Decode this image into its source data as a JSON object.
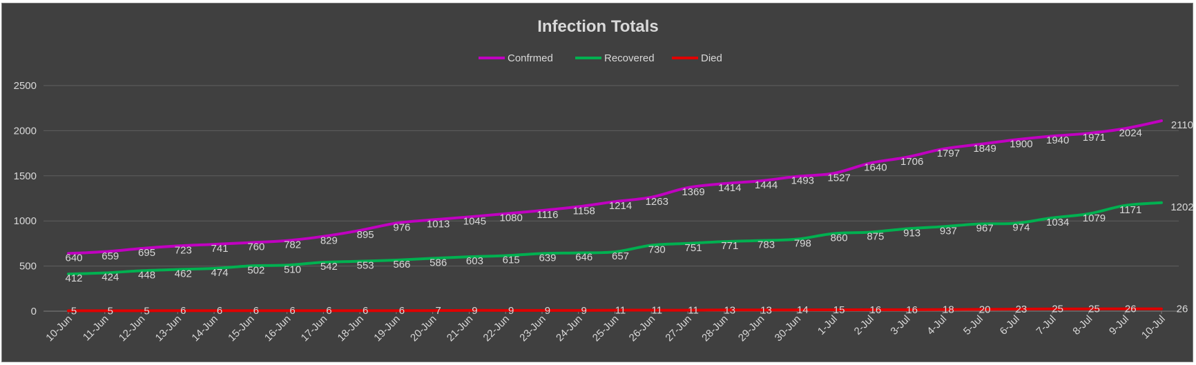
{
  "chart_data": {
    "type": "line",
    "title": "Infection Totals",
    "xlabel": "",
    "ylabel": "",
    "ylim": [
      0,
      2500
    ],
    "yticks": [
      0,
      500,
      1000,
      1500,
      2000,
      2500
    ],
    "grid": "horizontal",
    "legend": "top",
    "background": "#404040",
    "categories": [
      "10-Jun",
      "11-Jun",
      "12-Jun",
      "13-Jun",
      "14-Jun",
      "15-Jun",
      "16-Jun",
      "17-Jun",
      "18-Jun",
      "19-Jun",
      "20-Jun",
      "21-Jun",
      "22-Jun",
      "23-Jun",
      "24-Jun",
      "25-Jun",
      "26-Jun",
      "27-Jun",
      "28-Jun",
      "29-Jun",
      "30-Jun",
      "1-Jul",
      "2-Jul",
      "3-Jul",
      "4-Jul",
      "5-Jul",
      "6-Jul",
      "7-Jul",
      "8-Jul",
      "9-Jul",
      "10-Jul"
    ],
    "series": [
      {
        "name": "Confrmed",
        "color": "#c000c0",
        "values": [
          640,
          659,
          695,
          723,
          741,
          760,
          782,
          829,
          895,
          976,
          1013,
          1045,
          1080,
          1116,
          1158,
          1214,
          1263,
          1369,
          1414,
          1444,
          1493,
          1527,
          1640,
          1706,
          1797,
          1849,
          1900,
          1940,
          1971,
          2024,
          2110
        ]
      },
      {
        "name": "Recovered",
        "color": "#00b050",
        "values": [
          412,
          424,
          448,
          462,
          474,
          502,
          510,
          542,
          553,
          566,
          586,
          603,
          615,
          639,
          646,
          657,
          730,
          751,
          771,
          783,
          798,
          860,
          875,
          913,
          937,
          967,
          974,
          1034,
          1079,
          1171,
          1202
        ]
      },
      {
        "name": "Died",
        "color": "#e00000",
        "values": [
          5,
          5,
          5,
          6,
          6,
          6,
          6,
          6,
          6,
          6,
          7,
          9,
          9,
          9,
          9,
          11,
          11,
          11,
          13,
          13,
          14,
          15,
          16,
          16,
          18,
          20,
          23,
          25,
          25,
          26,
          26
        ]
      }
    ]
  }
}
